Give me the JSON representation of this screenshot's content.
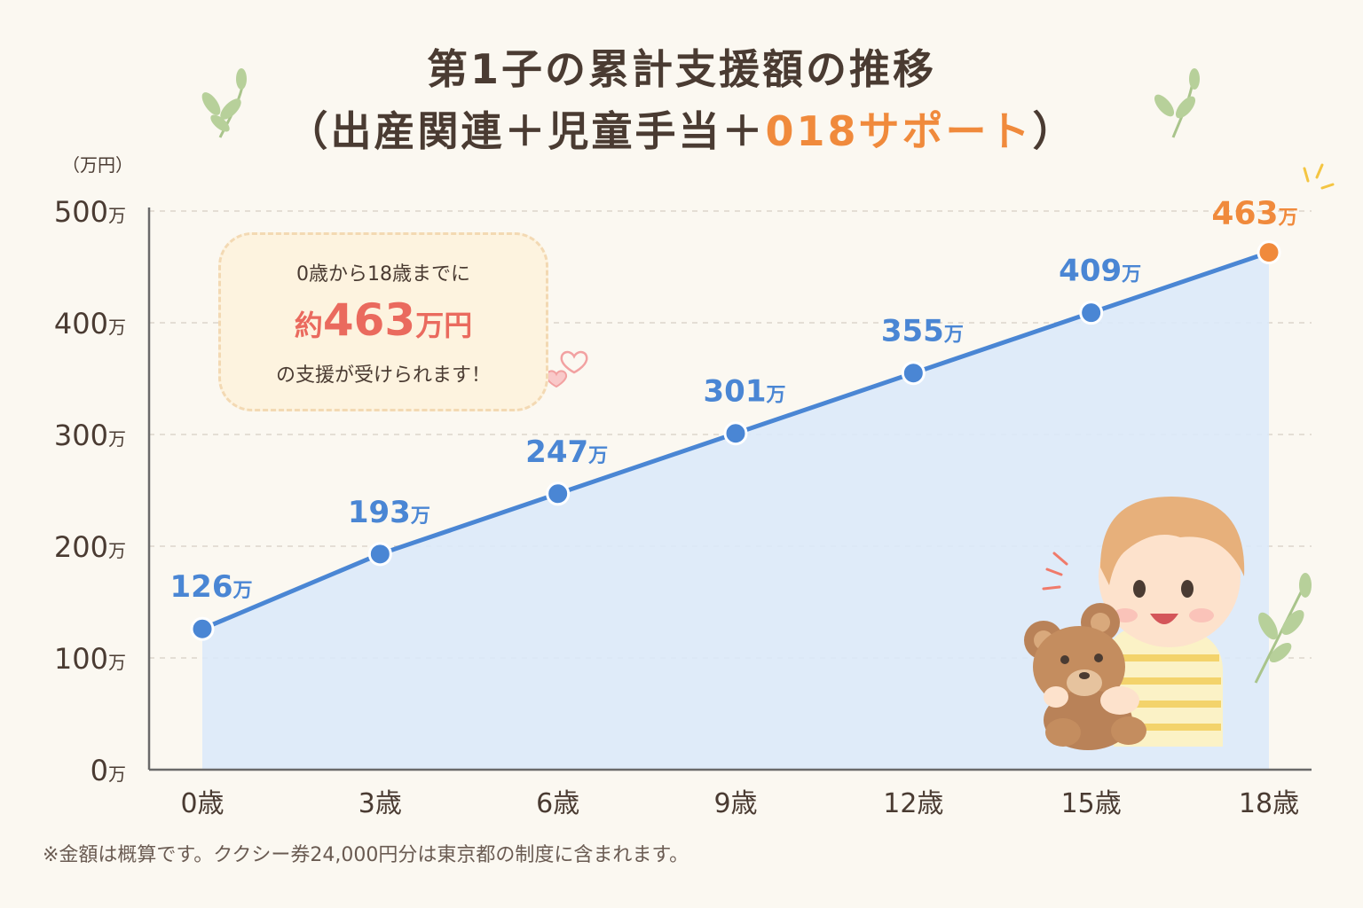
{
  "title": {
    "line1": "第1子の累計支援額の推移",
    "line2_open": "（出産関連＋児童手当＋",
    "line2_highlight": "018サポート",
    "line2_close": "）"
  },
  "unit_label": "（万円）",
  "callout": {
    "line1": "0歳から18歳までに",
    "prefix": "約",
    "amount": "463",
    "amount_unit": "万円",
    "line3": "の支援が受けられます！"
  },
  "footnote": "※金額は概算です。ククシー券24,000円分は東京都の制度に含まれます。",
  "colors": {
    "line": "#4a86d4",
    "area": "#dce9f9",
    "highlight": "#f08a3c",
    "grid": "#dcd6cc"
  },
  "chart_data": {
    "type": "area",
    "x": [
      "0歳",
      "3歳",
      "6歳",
      "9歳",
      "12歳",
      "15歳",
      "18歳"
    ],
    "values": [
      126,
      193,
      247,
      301,
      355,
      409,
      463
    ],
    "data_labels": [
      "126",
      "193",
      "247",
      "301",
      "355",
      "409",
      "463"
    ],
    "label_unit": "万",
    "ylabel": "（万円）",
    "ylim": [
      0,
      500
    ],
    "yticks": [
      "0",
      "100",
      "200",
      "300",
      "400",
      "500"
    ],
    "ytick_values": [
      0,
      100,
      200,
      300,
      400,
      500
    ],
    "tick_unit": "万",
    "grid": true,
    "highlight_last": true
  }
}
